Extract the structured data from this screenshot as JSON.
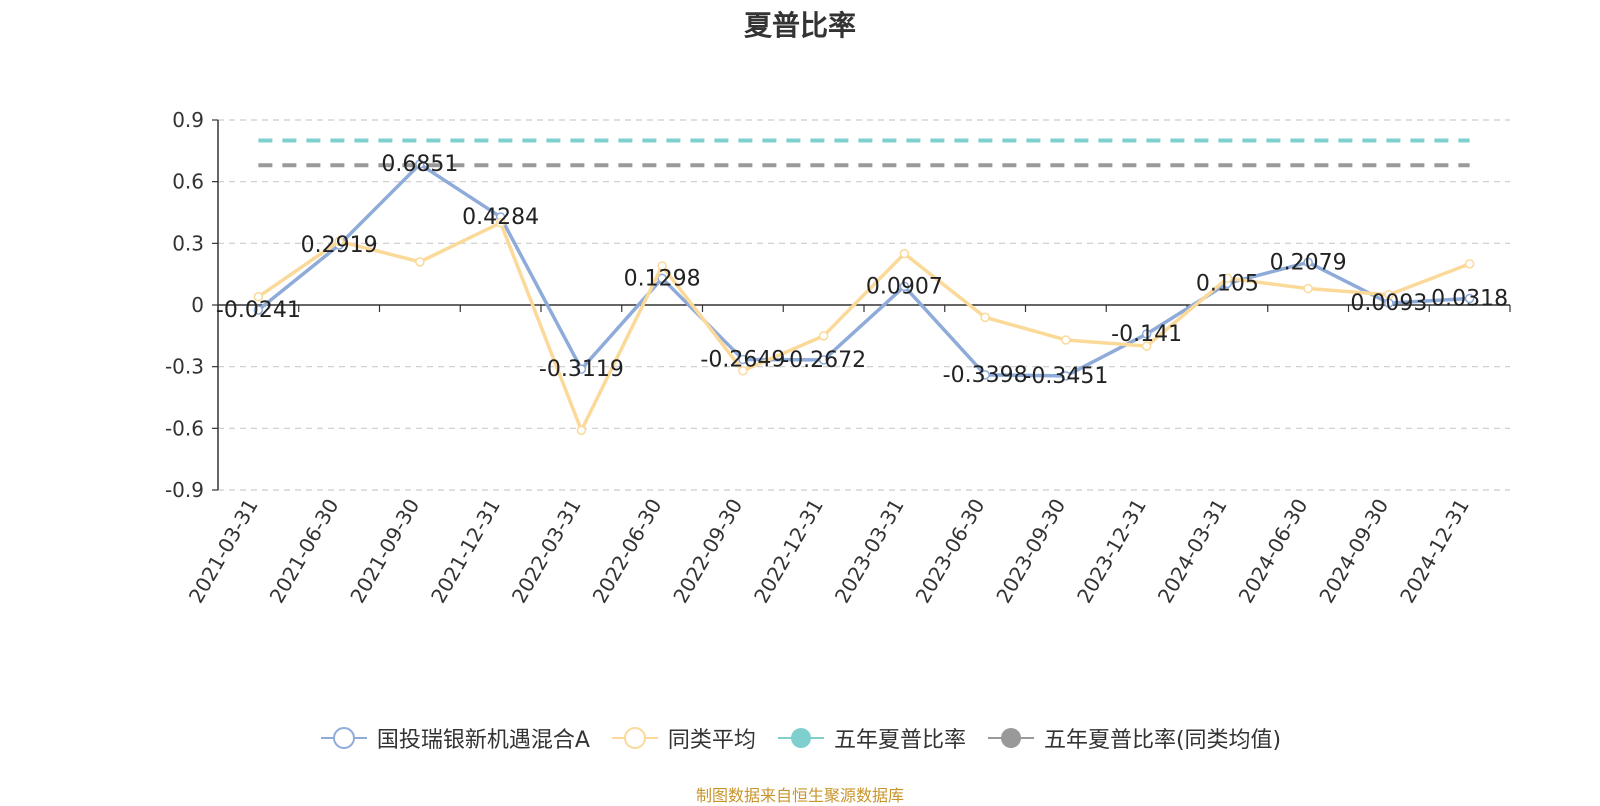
{
  "chart_data": {
    "type": "line",
    "title": "夏普比率",
    "categories": [
      "2021-03-31",
      "2021-06-30",
      "2021-09-30",
      "2021-12-31",
      "2022-03-31",
      "2022-06-30",
      "2022-09-30",
      "2022-12-31",
      "2023-03-31",
      "2023-06-30",
      "2023-09-30",
      "2023-12-31",
      "2024-03-31",
      "2024-06-30",
      "2024-09-30",
      "2024-12-31"
    ],
    "ylim": [
      -0.9,
      0.9
    ],
    "yticks": [
      "0.9",
      "0.6",
      "0.3",
      "0",
      "-0.3",
      "-0.6",
      "-0.9"
    ],
    "ytick_values": [
      0.9,
      0.6,
      0.3,
      0,
      -0.3,
      -0.6,
      -0.9
    ],
    "grid": true,
    "legend_position": "bottom",
    "series": [
      {
        "name": "国投瑞银新机遇混合A",
        "color": "#8eabd9",
        "style": "line",
        "values": [
          -0.0241,
          0.2919,
          0.6851,
          0.4284,
          -0.3119,
          0.1298,
          -0.2649,
          -0.2672,
          0.0907,
          -0.3398,
          -0.3451,
          -0.141,
          0.105,
          0.2079,
          0.0093,
          0.0318
        ],
        "labels": [
          "-0.0241",
          "0.2919",
          "0.6851",
          "0.4284",
          "-0.3119",
          "0.1298",
          "-0.2649",
          "-0.2672",
          "0.0907",
          "-0.3398",
          "-0.3451",
          "-0.141",
          "0.105",
          "0.2079",
          "0.0093",
          "0.0318"
        ]
      },
      {
        "name": "同类平均",
        "color": "#fbd999",
        "style": "line",
        "values": [
          0.04,
          0.31,
          0.21,
          0.4,
          -0.61,
          0.19,
          -0.32,
          -0.15,
          0.25,
          -0.06,
          -0.17,
          -0.2,
          0.13,
          0.08,
          0.05,
          0.2
        ]
      },
      {
        "name": "五年夏普比率",
        "color": "#7fcfcf",
        "style": "dashed",
        "value": 0.8
      },
      {
        "name": "五年夏普比率(同类均值)",
        "color": "#999999",
        "style": "dashed",
        "value": 0.68
      }
    ]
  },
  "source_note": "制图数据来自恒生聚源数据库"
}
